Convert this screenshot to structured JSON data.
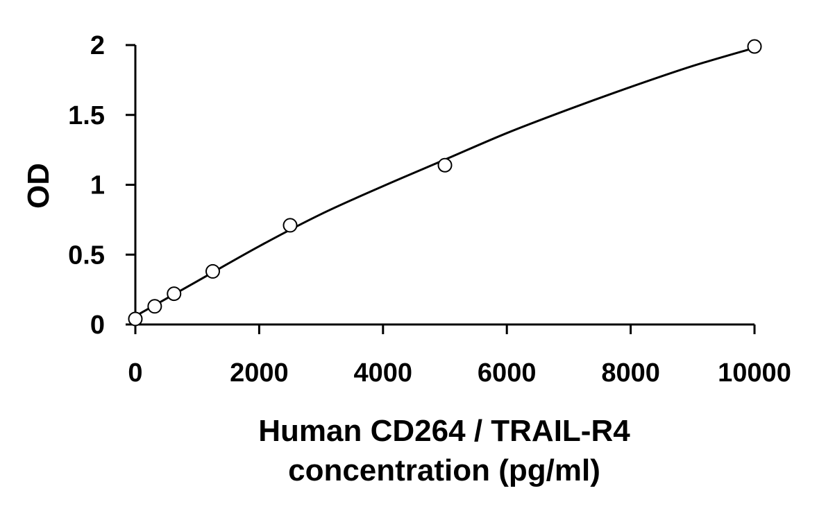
{
  "chart_data": {
    "type": "scatter",
    "title": "",
    "xlabel": "Human CD264 / TRAIL-R4",
    "xlabel_line2": "concentration (pg/ml)",
    "ylabel": "OD",
    "xlim": [
      0,
      10000
    ],
    "ylim": [
      0,
      2
    ],
    "xticks": [
      0,
      2000,
      4000,
      6000,
      8000,
      10000
    ],
    "yticks": [
      0,
      0.5,
      1,
      1.5,
      2
    ],
    "xtick_labels": [
      "0",
      "2000",
      "4000",
      "6000",
      "8000",
      "10000"
    ],
    "ytick_labels": [
      "0",
      "0.5",
      "1",
      "1.5",
      "2"
    ],
    "grid": false,
    "legend": "none",
    "marker_style": "open-circle",
    "series": [
      {
        "name": "",
        "x": [
          0,
          312.5,
          625,
          1250,
          2500,
          5000,
          10000
        ],
        "y": [
          0.04,
          0.13,
          0.22,
          0.38,
          0.71,
          1.14,
          1.99
        ]
      }
    ],
    "fit_curve": {
      "type": "smooth",
      "x": [
        0,
        1000,
        2000,
        3000,
        4000,
        5000,
        6000,
        7000,
        8000,
        9000,
        10000
      ],
      "y": [
        0.06,
        0.31,
        0.56,
        0.79,
        0.99,
        1.18,
        1.37,
        1.54,
        1.7,
        1.85,
        1.98
      ]
    },
    "colors": {
      "axis": "#000000",
      "marker_stroke": "#000000",
      "marker_fill": "#ffffff",
      "curve": "#000000"
    }
  }
}
